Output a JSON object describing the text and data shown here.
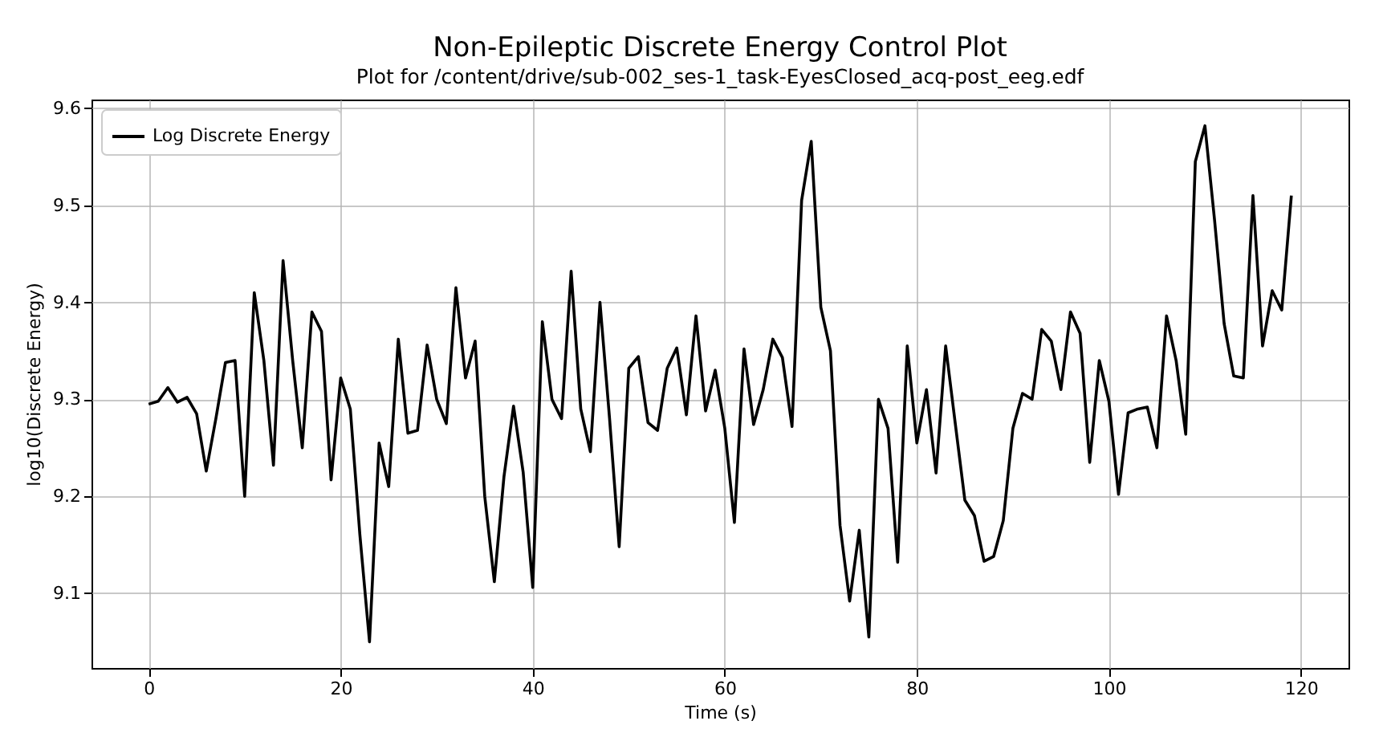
{
  "chart_data": {
    "type": "line",
    "title": "Non-Epileptic Discrete Energy Control Plot",
    "subtitle": "Plot for /content/drive/sub-002_ses-1_task-EyesClosed_acq-post_eeg.edf",
    "xlabel": "Time (s)",
    "ylabel": "log10(Discrete Energy)",
    "x": [
      0,
      1,
      2,
      3,
      4,
      5,
      6,
      7,
      8,
      9,
      10,
      11,
      12,
      13,
      14,
      15,
      16,
      17,
      18,
      19,
      20,
      21,
      22,
      23,
      24,
      25,
      26,
      27,
      28,
      29,
      30,
      31,
      32,
      33,
      34,
      35,
      36,
      37,
      38,
      39,
      40,
      41,
      42,
      43,
      44,
      45,
      46,
      47,
      48,
      49,
      50,
      51,
      52,
      53,
      54,
      55,
      56,
      57,
      58,
      59,
      60,
      61,
      62,
      63,
      64,
      65,
      66,
      67,
      68,
      69,
      70,
      71,
      72,
      73,
      74,
      75,
      76,
      77,
      78,
      79,
      80,
      81,
      82,
      83,
      84,
      85,
      86,
      87,
      88,
      89,
      90,
      91,
      92,
      93,
      94,
      95,
      96,
      97,
      98,
      99,
      100,
      101,
      102,
      103,
      104,
      105,
      106,
      107,
      108,
      109,
      110,
      111,
      112,
      113,
      114,
      115,
      116,
      117,
      118,
      119
    ],
    "series": [
      {
        "name": "Log Discrete Energy",
        "color": "#000000",
        "values": [
          9.295,
          9.298,
          9.312,
          9.297,
          9.302,
          9.285,
          9.226,
          9.28,
          9.338,
          9.34,
          9.2,
          9.41,
          9.34,
          9.232,
          9.443,
          9.34,
          9.25,
          9.39,
          9.37,
          9.217,
          9.322,
          9.29,
          9.16,
          9.05,
          9.255,
          9.21,
          9.362,
          9.265,
          9.268,
          9.356,
          9.3,
          9.275,
          9.415,
          9.322,
          9.36,
          9.2,
          9.112,
          9.22,
          9.293,
          9.225,
          9.106,
          9.38,
          9.3,
          9.28,
          9.432,
          9.29,
          9.246,
          9.4,
          9.28,
          9.148,
          9.332,
          9.344,
          9.276,
          9.268,
          9.332,
          9.353,
          9.284,
          9.386,
          9.288,
          9.33,
          9.27,
          9.173,
          9.352,
          9.274,
          9.31,
          9.362,
          9.343,
          9.272,
          9.505,
          9.566,
          9.395,
          9.35,
          9.17,
          9.092,
          9.165,
          9.055,
          9.3,
          9.27,
          9.132,
          9.355,
          9.255,
          9.31,
          9.224,
          9.355,
          9.275,
          9.196,
          9.18,
          9.133,
          9.138,
          9.175,
          9.27,
          9.306,
          9.3,
          9.372,
          9.36,
          9.31,
          9.39,
          9.368,
          9.235,
          9.34,
          9.298,
          9.202,
          9.286,
          9.29,
          9.292,
          9.25,
          9.386,
          9.34,
          9.264,
          9.545,
          9.582,
          9.485,
          9.378,
          9.324,
          9.322,
          9.51,
          9.355,
          9.412,
          9.392,
          9.51
        ]
      }
    ],
    "xlim": [
      -5.95,
      124.95
    ],
    "ylim": [
      9.023,
      9.609
    ],
    "xticks": [
      0,
      20,
      40,
      60,
      80,
      100,
      120
    ],
    "yticks": [
      9.1,
      9.2,
      9.3,
      9.4,
      9.5,
      9.6
    ],
    "grid": true,
    "legend": "top left",
    "line_style": "solid"
  }
}
